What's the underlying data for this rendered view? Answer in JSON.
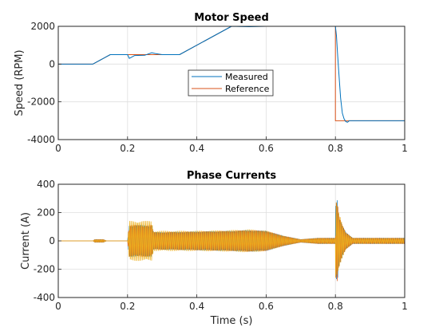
{
  "chart_data": [
    {
      "type": "line",
      "title": "Motor Speed",
      "xlabel": "",
      "ylabel": "Speed (RPM)",
      "xlim": [
        0,
        1
      ],
      "ylim": [
        -4000,
        2000
      ],
      "xticks": [
        0,
        0.2,
        0.4,
        0.6,
        0.8,
        1
      ],
      "xtick_labels": [
        "0",
        "0.2",
        "0.4",
        "0.6",
        "0.8",
        "1"
      ],
      "yticks": [
        -4000,
        -2000,
        0,
        2000
      ],
      "ytick_labels": [
        "-4000",
        "-2000",
        "0",
        "2000"
      ],
      "grid": true,
      "legend_position": "center",
      "series": [
        {
          "name": "Measured",
          "color": "#0072bd",
          "x": [
            0,
            0.1,
            0.15,
            0.2,
            0.205,
            0.21,
            0.22,
            0.25,
            0.27,
            0.28,
            0.3,
            0.35,
            0.5,
            0.55,
            0.6,
            0.7,
            0.8,
            0.803,
            0.806,
            0.81,
            0.815,
            0.82,
            0.825,
            0.83,
            0.835,
            0.84,
            1
          ],
          "y": [
            0,
            0,
            500,
            500,
            300,
            350,
            450,
            470,
            600,
            560,
            500,
            500,
            2000,
            1980,
            2000,
            2000,
            2000,
            1500,
            600,
            -500,
            -1800,
            -2600,
            -2900,
            -3050,
            -3080,
            -3000,
            -3000
          ]
        },
        {
          "name": "Reference",
          "color": "#d95319",
          "x": [
            0,
            0.1,
            0.15,
            0.35,
            0.5,
            0.8,
            0.8,
            1
          ],
          "y": [
            0,
            0,
            500,
            500,
            2000,
            2000,
            -3000,
            -3000
          ]
        }
      ]
    },
    {
      "type": "line",
      "title": "Phase Currents",
      "xlabel": "Time (s)",
      "ylabel": "Current (A)",
      "xlim": [
        0,
        1
      ],
      "ylim": [
        -400,
        400
      ],
      "xticks": [
        0,
        0.2,
        0.4,
        0.6,
        0.8,
        1
      ],
      "xtick_labels": [
        "0",
        "0.2",
        "0.4",
        "0.6",
        "0.8",
        "1"
      ],
      "yticks": [
        -400,
        -200,
        0,
        200,
        400
      ],
      "ytick_labels": [
        "-400",
        "-200",
        "0",
        "200",
        "400"
      ],
      "grid": true,
      "series": [
        {
          "color": "#0072bd",
          "envelope": {
            "t": [
              0,
              0.1,
              0.105,
              0.13,
              0.14,
              0.2,
              0.205,
              0.27,
              0.275,
              0.4,
              0.5,
              0.55,
              0.6,
              0.65,
              0.7,
              0.75,
              0.8,
              0.8,
              0.805,
              0.81,
              0.82,
              0.83,
              0.85,
              1
            ],
            "amp": [
              0,
              0,
              10,
              10,
              0,
              0,
              110,
              110,
              60,
              65,
              70,
              75,
              70,
              35,
              10,
              20,
              20,
              240,
              300,
              180,
              110,
              60,
              20,
              20
            ]
          }
        },
        {
          "color": "#d95319",
          "envelope": {
            "t": [
              0,
              0.1,
              0.105,
              0.13,
              0.14,
              0.2,
              0.205,
              0.27,
              0.275,
              0.4,
              0.5,
              0.55,
              0.6,
              0.65,
              0.7,
              0.75,
              0.8,
              0.8,
              0.805,
              0.81,
              0.82,
              0.83,
              0.85,
              1
            ],
            "amp": [
              0,
              0,
              10,
              10,
              0,
              0,
              110,
              110,
              60,
              65,
              70,
              75,
              70,
              35,
              10,
              20,
              20,
              240,
              300,
              180,
              110,
              60,
              20,
              20
            ]
          }
        },
        {
          "color": "#edb120",
          "envelope": {
            "t": [
              0,
              0.1,
              0.105,
              0.13,
              0.14,
              0.2,
              0.205,
              0.27,
              0.275,
              0.4,
              0.5,
              0.55,
              0.6,
              0.65,
              0.7,
              0.75,
              0.8,
              0.8,
              0.805,
              0.81,
              0.82,
              0.83,
              0.85,
              1
            ],
            "amp": [
              0,
              0,
              10,
              10,
              0,
              0,
              140,
              140,
              70,
              70,
              75,
              80,
              72,
              35,
              10,
              20,
              20,
              280,
              260,
              200,
              120,
              60,
              20,
              20
            ]
          }
        }
      ]
    }
  ]
}
